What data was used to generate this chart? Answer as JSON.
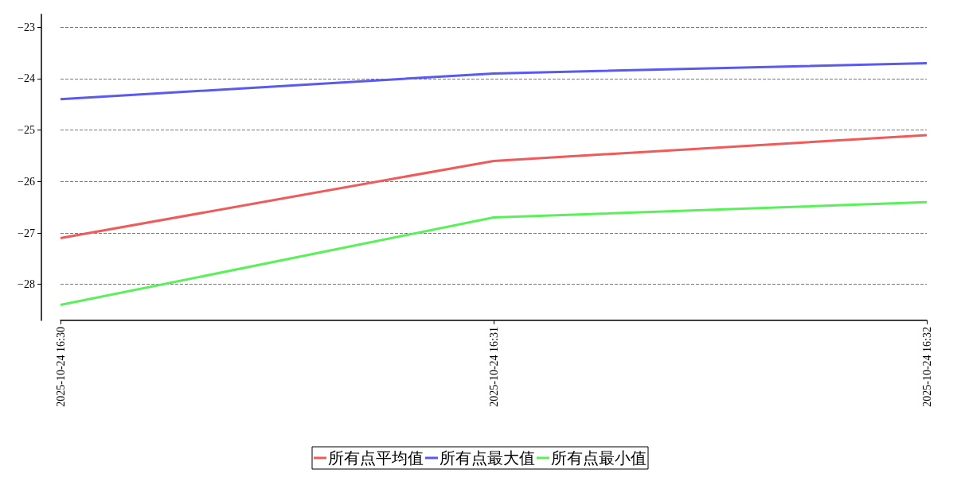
{
  "chart_data": {
    "type": "line",
    "categories": [
      "2025-10-24 16:30",
      "2025-10-24 16:31",
      "2025-10-24 16:32"
    ],
    "series": [
      {
        "name": "所有点平均值",
        "color": "#f05a5a",
        "values": [
          -27.1,
          -25.6,
          -25.1
        ]
      },
      {
        "name": "所有点最大值",
        "color": "#5a5af0",
        "values": [
          -24.4,
          -23.9,
          -23.7
        ]
      },
      {
        "name": "所有点最小值",
        "color": "#5af05a",
        "values": [
          -28.4,
          -26.7,
          -26.4
        ]
      }
    ],
    "ylim": [
      -28.7,
      -22.75
    ],
    "yticks": [
      -28,
      -27,
      -26,
      -25,
      -24,
      -23
    ],
    "grid": "y",
    "legend": "bottom",
    "marker": "none",
    "line_style": "solid"
  }
}
